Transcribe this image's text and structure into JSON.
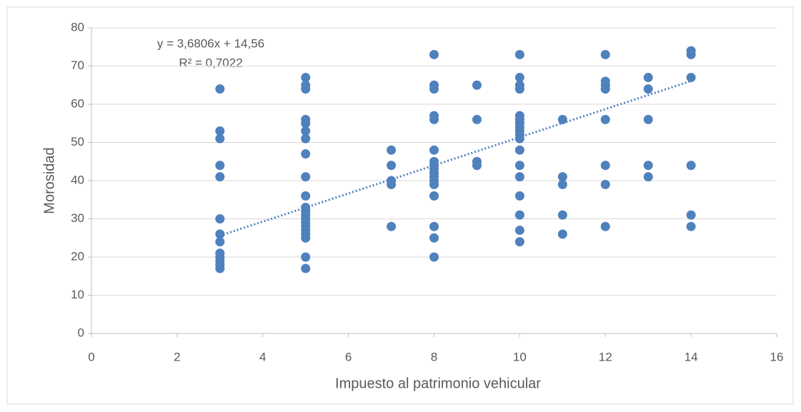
{
  "chart_data": {
    "type": "scatter",
    "x_label": "Impuesto al patrimonio vehicular",
    "y_label": "Morosidad",
    "color": "#4f81bd",
    "grid": true,
    "xlim": [
      0,
      16
    ],
    "xticks": [
      0,
      2,
      4,
      6,
      8,
      10,
      12,
      14,
      16
    ],
    "ylim": [
      0,
      80
    ],
    "yticks": [
      0,
      10,
      20,
      30,
      40,
      50,
      60,
      70,
      80
    ],
    "trendline": {
      "equation": "y = 3,6806x + 14,56",
      "r2": "R² = 0,7022",
      "slope": 3.6806,
      "intercept": 14.56
    },
    "x": [
      3,
      3,
      3,
      3,
      3,
      3,
      3,
      3,
      3,
      3,
      3,
      3,
      3,
      5,
      5,
      5,
      5,
      5,
      5,
      5,
      5,
      5,
      5,
      5,
      5,
      5,
      5,
      5,
      5,
      5,
      5,
      5,
      5,
      5,
      7,
      7,
      7,
      7,
      7,
      8,
      8,
      8,
      8,
      8,
      8,
      8,
      8,
      8,
      8,
      8,
      8,
      8,
      8,
      8,
      8,
      8,
      9,
      9,
      9,
      9,
      10,
      10,
      10,
      10,
      10,
      10,
      10,
      10,
      10,
      10,
      10,
      10,
      10,
      10,
      10,
      10,
      10,
      10,
      11,
      11,
      11,
      11,
      11,
      12,
      12,
      12,
      12,
      12,
      12,
      12,
      12,
      13,
      13,
      13,
      13,
      13,
      14,
      14,
      14,
      14,
      14,
      14
    ],
    "y": [
      64,
      53,
      51,
      44,
      41,
      30,
      26,
      24,
      21,
      20,
      19,
      18,
      17,
      67,
      65,
      64,
      56,
      55,
      53,
      51,
      47,
      41,
      36,
      33,
      32,
      31,
      30,
      29,
      28,
      27,
      26,
      25,
      20,
      17,
      48,
      44,
      40,
      39,
      28,
      73,
      65,
      64,
      57,
      56,
      48,
      45,
      44,
      43,
      42,
      41,
      40,
      39,
      36,
      28,
      25,
      20,
      65,
      56,
      45,
      44,
      73,
      67,
      65,
      64,
      57,
      56,
      55,
      54,
      53,
      52,
      51,
      48,
      44,
      41,
      36,
      31,
      27,
      24,
      56,
      41,
      39,
      31,
      26,
      73,
      66,
      65,
      64,
      56,
      44,
      39,
      28,
      67,
      64,
      56,
      44,
      41,
      74,
      73,
      67,
      44,
      31,
      28
    ]
  }
}
